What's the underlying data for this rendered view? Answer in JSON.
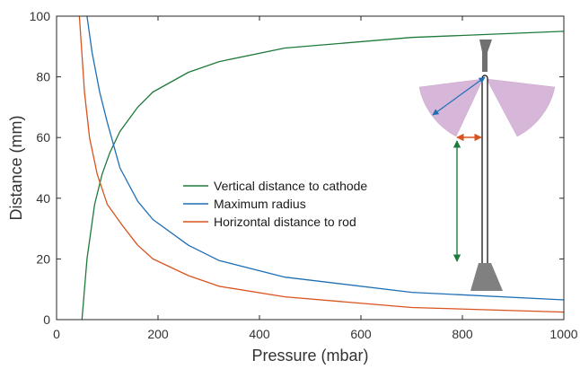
{
  "chart_data": {
    "type": "line",
    "xlabel": "Pressure (mbar)",
    "ylabel": "Distance (mm)",
    "xlim": [
      0,
      1000
    ],
    "ylim": [
      0,
      100
    ],
    "xticks": [
      0,
      200,
      400,
      600,
      800,
      1000
    ],
    "yticks": [
      0,
      20,
      40,
      60,
      80,
      100
    ],
    "grid": false,
    "legend_position": "center",
    "series": [
      {
        "name": "Vertical distance to cathode",
        "color": "#1f7a3a",
        "x": [
          50,
          60,
          75,
          90,
          105,
          125,
          160,
          190,
          260,
          320,
          450,
          700,
          1000
        ],
        "y": [
          0,
          20,
          38,
          48,
          55,
          62,
          70,
          75,
          81.5,
          85,
          89.5,
          93,
          95
        ]
      },
      {
        "name": "Maximum radius",
        "color": "#1f6fb5",
        "x": [
          60,
          70,
          85,
          100,
          125,
          160,
          190,
          260,
          320,
          450,
          700,
          1000
        ],
        "y": [
          100,
          88,
          75,
          65,
          50,
          39,
          33,
          24.5,
          19.5,
          14,
          9,
          6.5
        ]
      },
      {
        "name": "Horizontal distance to rod",
        "color": "#d9531e",
        "x": [
          45,
          55,
          65,
          80,
          100,
          130,
          160,
          190,
          260,
          320,
          450,
          700,
          1000
        ],
        "y": [
          100,
          75,
          60,
          48,
          38,
          31,
          24.5,
          20,
          14.5,
          11,
          7.5,
          4,
          2.5
        ]
      }
    ],
    "inset": {
      "description_icon": "electrode-rod-schematic",
      "rod_color": "#000000",
      "base_color": "#808080",
      "cone_color": "#d7b7d9",
      "arrow_colors": {
        "radius": "#1f6fb5",
        "horizontal": "#d9531e",
        "vertical": "#1f7a3a"
      }
    }
  }
}
